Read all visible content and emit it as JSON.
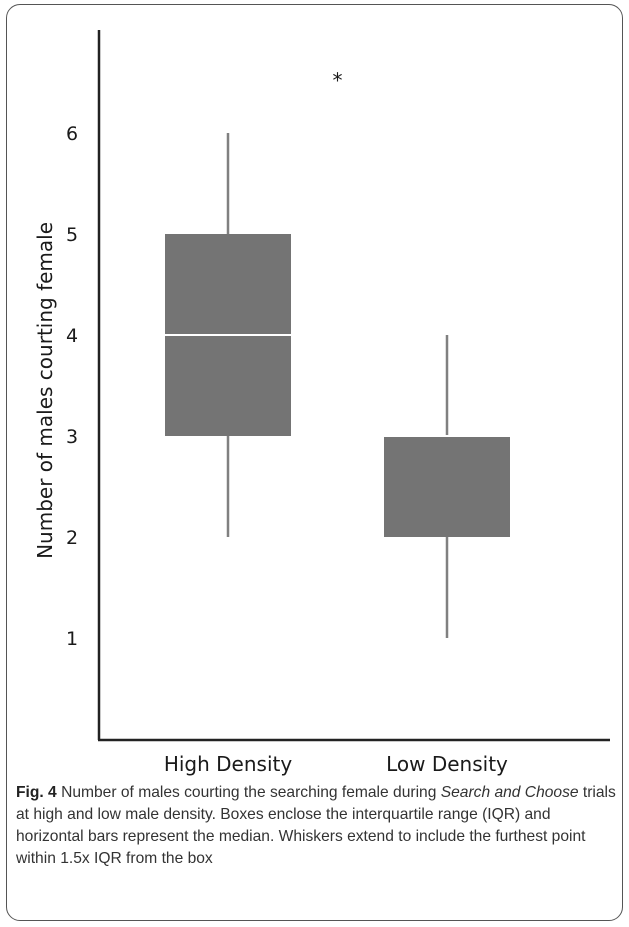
{
  "chart_data": {
    "type": "box",
    "ylabel": "Number of males courting female",
    "xlabel": "",
    "ylim": [
      0.2,
      6.9
    ],
    "yticks": [
      1,
      2,
      3,
      4,
      5,
      6
    ],
    "categories": [
      "High Density",
      "Low Density"
    ],
    "boxes": [
      {
        "category": "High Density",
        "whisker_low": 2,
        "q1": 3,
        "median": 4,
        "q3": 5,
        "whisker_high": 6
      },
      {
        "category": "Low Density",
        "whisker_low": 1,
        "q1": 2,
        "median": 3,
        "q3": 3,
        "whisker_high": 4
      }
    ],
    "annotation": {
      "text": "*",
      "x": 1.5,
      "y": 6.55
    },
    "grid": false,
    "box_color": "#747474",
    "median_color": "#ffffff",
    "whisker_color": "#808080"
  },
  "caption": {
    "label": "Fig. 4",
    "text_1": " Number of males courting the searching female during ",
    "italic": "Search and Choose",
    "text_2": " trials at high and low male density. Boxes enclose the interquartile range (IQR) and horizontal bars represent the median. Whiskers extend to include the furthest point within 1.5x IQR from the box"
  }
}
